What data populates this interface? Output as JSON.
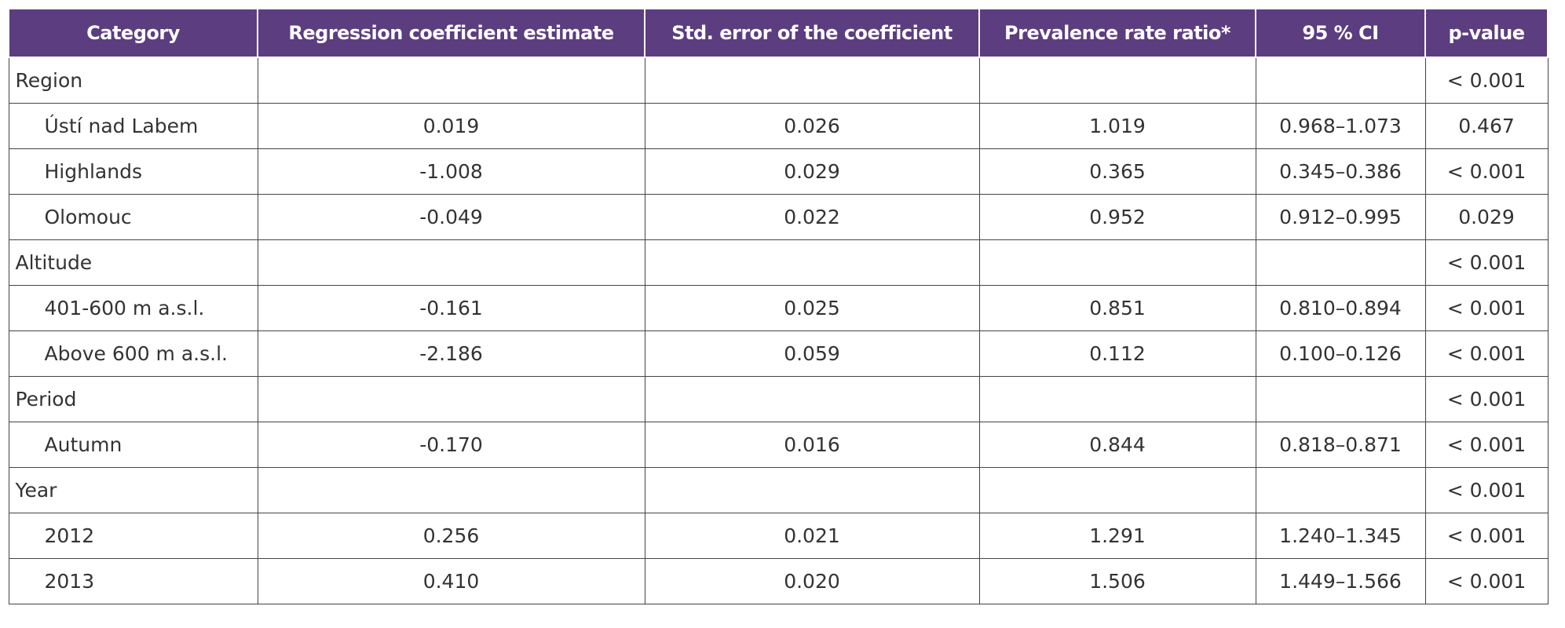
{
  "table": {
    "header": [
      "Category",
      "Regression coefficient estimate",
      "Std. error of the coefficient",
      "Prevalence rate ratio*",
      "95 % CI",
      "p-value"
    ],
    "groups": [
      {
        "label": "Region",
        "p_value": "< 0.001",
        "rows": [
          [
            "Ústí nad Labem",
            "0.019",
            "0.026",
            "1.019",
            "0.968–1.073",
            "0.467"
          ],
          [
            "Highlands",
            "-1.008",
            "0.029",
            "0.365",
            "0.345–0.386",
            "< 0.001"
          ],
          [
            "Olomouc",
            "-0.049",
            "0.022",
            "0.952",
            "0.912–0.995",
            "0.029"
          ]
        ]
      },
      {
        "label": "Altitude",
        "p_value": "< 0.001",
        "rows": [
          [
            "401-600 m a.s.l.",
            "-0.161",
            "0.025",
            "0.851",
            "0.810–0.894",
            "< 0.001"
          ],
          [
            "Above 600 m a.s.l.",
            "-2.186",
            "0.059",
            "0.112",
            "0.100–0.126",
            "< 0.001"
          ]
        ]
      },
      {
        "label": "Period",
        "p_value": "< 0.001",
        "rows": [
          [
            "Autumn",
            "-0.170",
            "0.016",
            "0.844",
            "0.818–0.871",
            "< 0.001"
          ]
        ]
      },
      {
        "label": "Year",
        "p_value": "< 0.001",
        "rows": [
          [
            "2012",
            "0.256",
            "0.021",
            "1.291",
            "1.240–1.345",
            "< 0.001"
          ],
          [
            "2013",
            "0.410",
            "0.020",
            "1.506",
            "1.449–1.566",
            "< 0.001"
          ]
        ]
      }
    ]
  }
}
